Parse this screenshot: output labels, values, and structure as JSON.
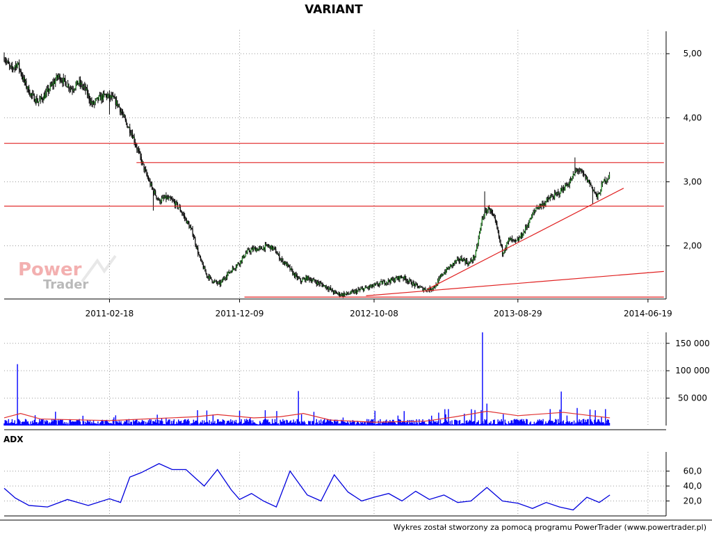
{
  "chart_data": [
    {
      "type": "candlestick",
      "title": "VARIANT",
      "x_ticks": [
        "2011-02-18",
        "2011-12-09",
        "2012-10-08",
        "2013-08-29",
        "2014-06-19"
      ],
      "y_ticks": [
        "2,00",
        "3,00",
        "4,00",
        "5,00"
      ],
      "y_tick_values": [
        2,
        3,
        4,
        5
      ],
      "ylim": [
        1.17,
        5.35
      ],
      "xlim": [
        "2010-06-25",
        "2014-07-30"
      ],
      "grid": true,
      "price_path": [
        [
          "2010-06-25",
          4.95
        ],
        [
          "2010-07-10",
          4.75
        ],
        [
          "2010-07-25",
          4.85
        ],
        [
          "2010-08-10",
          4.55
        ],
        [
          "2010-08-25",
          4.35
        ],
        [
          "2010-09-10",
          4.25
        ],
        [
          "2010-09-25",
          4.35
        ],
        [
          "2010-10-10",
          4.5
        ],
        [
          "2010-10-25",
          4.65
        ],
        [
          "2010-11-10",
          4.55
        ],
        [
          "2010-11-25",
          4.45
        ],
        [
          "2010-12-10",
          4.55
        ],
        [
          "2010-12-25",
          4.45
        ],
        [
          "2011-01-10",
          4.2
        ],
        [
          "2011-01-25",
          4.3
        ],
        [
          "2011-02-10",
          4.35
        ],
        [
          "2011-02-25",
          4.3
        ],
        [
          "2011-03-10",
          4.2
        ],
        [
          "2011-03-25",
          3.95
        ],
        [
          "2011-04-10",
          3.75
        ],
        [
          "2011-04-25",
          3.45
        ],
        [
          "2011-05-10",
          3.15
        ],
        [
          "2011-05-25",
          2.9
        ],
        [
          "2011-06-10",
          2.7
        ],
        [
          "2011-06-25",
          2.75
        ],
        [
          "2011-07-10",
          2.7
        ],
        [
          "2011-07-25",
          2.6
        ],
        [
          "2011-08-10",
          2.4
        ],
        [
          "2011-08-25",
          2.2
        ],
        [
          "2011-09-10",
          1.8
        ],
        [
          "2011-09-25",
          1.55
        ],
        [
          "2011-10-10",
          1.45
        ],
        [
          "2011-10-25",
          1.4
        ],
        [
          "2011-11-10",
          1.55
        ],
        [
          "2011-11-25",
          1.65
        ],
        [
          "2011-12-10",
          1.75
        ],
        [
          "2011-12-25",
          1.9
        ],
        [
          "2012-01-10",
          1.95
        ],
        [
          "2012-01-25",
          1.95
        ],
        [
          "2012-02-10",
          2.0
        ],
        [
          "2012-02-25",
          1.95
        ],
        [
          "2012-03-10",
          1.8
        ],
        [
          "2012-03-25",
          1.7
        ],
        [
          "2012-04-10",
          1.55
        ],
        [
          "2012-04-25",
          1.45
        ],
        [
          "2012-05-10",
          1.5
        ],
        [
          "2012-05-25",
          1.45
        ],
        [
          "2012-06-10",
          1.4
        ],
        [
          "2012-06-25",
          1.35
        ],
        [
          "2012-07-10",
          1.27
        ],
        [
          "2012-07-25",
          1.24
        ],
        [
          "2012-08-10",
          1.25
        ],
        [
          "2012-08-25",
          1.28
        ],
        [
          "2012-09-10",
          1.32
        ],
        [
          "2012-09-25",
          1.35
        ],
        [
          "2012-10-10",
          1.38
        ],
        [
          "2012-10-25",
          1.42
        ],
        [
          "2012-11-10",
          1.45
        ],
        [
          "2012-11-25",
          1.48
        ],
        [
          "2012-12-10",
          1.52
        ],
        [
          "2012-12-25",
          1.45
        ],
        [
          "2013-01-10",
          1.38
        ],
        [
          "2013-01-25",
          1.33
        ],
        [
          "2013-02-10",
          1.32
        ],
        [
          "2013-02-25",
          1.38
        ],
        [
          "2013-03-10",
          1.55
        ],
        [
          "2013-03-25",
          1.65
        ],
        [
          "2013-04-10",
          1.75
        ],
        [
          "2013-04-25",
          1.8
        ],
        [
          "2013-05-10",
          1.72
        ],
        [
          "2013-05-25",
          1.85
        ],
        [
          "2013-06-10",
          2.45
        ],
        [
          "2013-06-25",
          2.6
        ],
        [
          "2013-07-10",
          2.35
        ],
        [
          "2013-07-25",
          1.9
        ],
        [
          "2013-08-10",
          2.1
        ],
        [
          "2013-08-25",
          2.05
        ],
        [
          "2013-09-10",
          2.2
        ],
        [
          "2013-09-25",
          2.4
        ],
        [
          "2013-10-10",
          2.6
        ],
        [
          "2013-10-25",
          2.65
        ],
        [
          "2013-11-10",
          2.75
        ],
        [
          "2013-11-25",
          2.8
        ],
        [
          "2013-12-10",
          2.9
        ],
        [
          "2013-12-25",
          3.0
        ],
        [
          "2014-01-10",
          3.2
        ],
        [
          "2014-01-25",
          3.1
        ],
        [
          "2014-02-10",
          2.95
        ],
        [
          "2014-02-25",
          2.75
        ],
        [
          "2014-03-10",
          3.0
        ],
        [
          "2014-03-25",
          3.1
        ]
      ],
      "price_spikes": [
        [
          "2011-02-18",
          4.05
        ],
        [
          "2011-05-28",
          2.55
        ],
        [
          "2013-06-15",
          2.85
        ],
        [
          "2014-01-05",
          3.38
        ],
        [
          "2014-02-14",
          2.65
        ]
      ],
      "horizontal_lines": [
        {
          "from": "2010-06-25",
          "to": "2014-07-25",
          "y": 3.6,
          "color": "#e02020"
        },
        {
          "from": "2011-04-20",
          "to": "2014-07-25",
          "y": 3.3,
          "color": "#e02020"
        },
        {
          "from": "2010-06-25",
          "to": "2014-07-25",
          "y": 2.62,
          "color": "#e02020"
        },
        {
          "from": "2011-12-20",
          "to": "2014-07-25",
          "y": 1.2,
          "color": "#e02020"
        }
      ],
      "trend_lines": [
        {
          "from": [
            "2012-09-20",
            1.22
          ],
          "to": [
            "2014-07-25",
            1.6
          ],
          "color": "#e02020"
        },
        {
          "from": [
            "2013-02-05",
            1.32
          ],
          "to": [
            "2014-04-25",
            2.9
          ],
          "color": "#e02020"
        }
      ],
      "colors": {
        "up": "#1a8a1a",
        "down": "#000000"
      }
    },
    {
      "type": "bar",
      "title": "",
      "y_ticks": [
        "50 000",
        "100 000",
        "150 000"
      ],
      "y_tick_values": [
        50000,
        100000,
        150000
      ],
      "ylim": [
        0,
        170000
      ],
      "baseline_volume": 8000,
      "volume_spikes": [
        [
          "2010-07-25",
          112000
        ],
        [
          "2011-05-20",
          12000
        ],
        [
          "2011-09-05",
          28000
        ],
        [
          "2011-10-10",
          20000
        ],
        [
          "2012-02-05",
          28000
        ],
        [
          "2012-04-20",
          63000
        ],
        [
          "2012-05-25",
          25000
        ],
        [
          "2013-02-15",
          18000
        ],
        [
          "2013-03-25",
          30000
        ],
        [
          "2013-06-10",
          170000
        ],
        [
          "2013-06-20",
          40000
        ],
        [
          "2013-11-10",
          30000
        ],
        [
          "2013-12-05",
          62000
        ],
        [
          "2014-01-10",
          32000
        ],
        [
          "2014-02-20",
          28000
        ],
        [
          "2014-03-15",
          30000
        ]
      ],
      "ma_path": [
        [
          "2010-06-25",
          14000
        ],
        [
          "2010-08-01",
          22000
        ],
        [
          "2010-09-15",
          12000
        ],
        [
          "2011-02-18",
          9000
        ],
        [
          "2011-09-01",
          16000
        ],
        [
          "2011-10-20",
          20000
        ],
        [
          "2012-01-10",
          14000
        ],
        [
          "2012-03-10",
          16000
        ],
        [
          "2012-05-01",
          22000
        ],
        [
          "2012-07-01",
          10000
        ],
        [
          "2012-10-08",
          6000
        ],
        [
          "2013-02-01",
          8000
        ],
        [
          "2013-04-10",
          16000
        ],
        [
          "2013-06-20",
          26000
        ],
        [
          "2013-08-29",
          18000
        ],
        [
          "2013-12-10",
          24000
        ],
        [
          "2014-02-10",
          18000
        ],
        [
          "2014-03-25",
          14000
        ]
      ],
      "colors": {
        "bars": "#0000ff",
        "ma": "#e03030"
      }
    },
    {
      "type": "line",
      "title": "ADX",
      "y_ticks": [
        "20,0",
        "40,0",
        "60,0"
      ],
      "y_tick_values": [
        20,
        40,
        60
      ],
      "ylim": [
        0,
        80
      ],
      "x": [
        "2010-06-25",
        "2010-07-20",
        "2010-08-20",
        "2010-10-01",
        "2010-11-15",
        "2011-01-01",
        "2011-02-18",
        "2011-03-15",
        "2011-04-05",
        "2011-05-01",
        "2011-06-10",
        "2011-07-10",
        "2011-08-10",
        "2011-09-20",
        "2011-10-20",
        "2011-11-20",
        "2011-12-09",
        "2012-01-05",
        "2012-02-01",
        "2012-03-01",
        "2012-04-01",
        "2012-05-10",
        "2012-06-10",
        "2012-07-10",
        "2012-08-10",
        "2012-09-10",
        "2012-10-08",
        "2012-11-10",
        "2012-12-10",
        "2013-01-10",
        "2013-02-10",
        "2013-03-15",
        "2013-04-15",
        "2013-05-15",
        "2013-06-20",
        "2013-07-25",
        "2013-08-29",
        "2013-10-01",
        "2013-11-01",
        "2013-12-01",
        "2014-01-01",
        "2014-02-01",
        "2014-03-01",
        "2014-03-25"
      ],
      "values": [
        37,
        24,
        14,
        12,
        22,
        14,
        23,
        18,
        52,
        58,
        70,
        62,
        62,
        40,
        62,
        35,
        22,
        30,
        20,
        12,
        60,
        28,
        20,
        55,
        32,
        20,
        25,
        30,
        20,
        33,
        22,
        28,
        18,
        20,
        38,
        20,
        17,
        10,
        18,
        12,
        8,
        25,
        18,
        28
      ],
      "colors": {
        "line": "#0000dd"
      }
    }
  ],
  "watermark": {
    "line1": "Power",
    "line2": "Trader"
  },
  "footer": "Wykres został stworzony za pomocą programu PowerTrader (www.powertrader.pl)"
}
